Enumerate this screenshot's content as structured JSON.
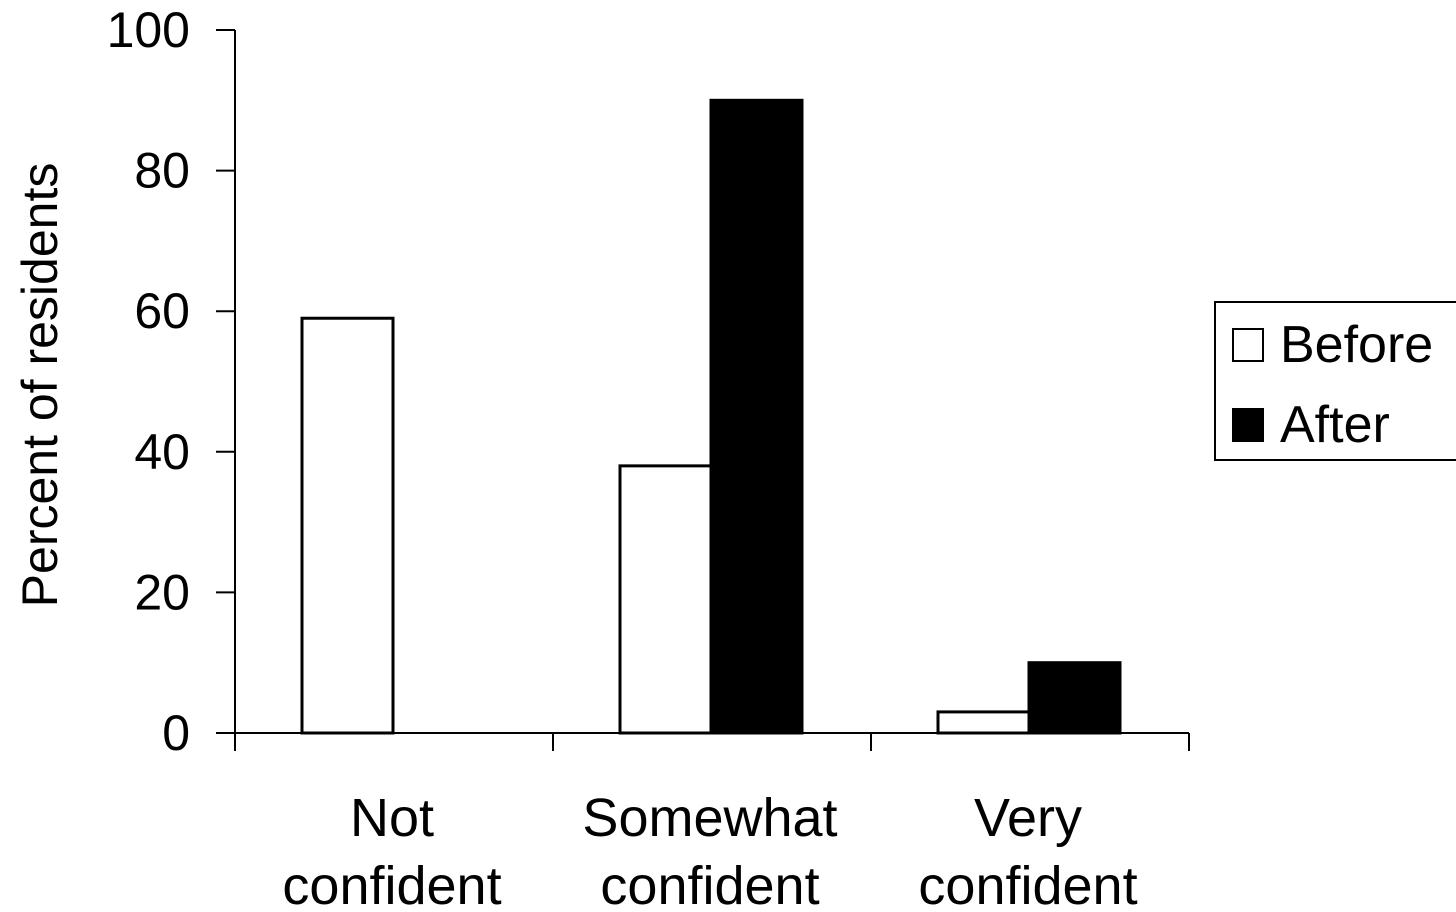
{
  "chart_data": {
    "type": "bar",
    "title": "",
    "xlabel": "",
    "ylabel": "Percent of residents",
    "ylim": [
      0,
      100
    ],
    "yticks": [
      0,
      20,
      40,
      60,
      80,
      100
    ],
    "categories": [
      [
        "Not",
        "confident"
      ],
      [
        "Somewhat",
        "confident"
      ],
      [
        "Very",
        "confident"
      ]
    ],
    "series": [
      {
        "name": "Before",
        "values": [
          59,
          38,
          3
        ],
        "color": "#ffffff",
        "stroke": "#000000"
      },
      {
        "name": "After",
        "values": [
          0,
          90,
          10
        ],
        "color": "#000000",
        "stroke": "#000000"
      }
    ],
    "grid": false,
    "legend_position": "right"
  }
}
